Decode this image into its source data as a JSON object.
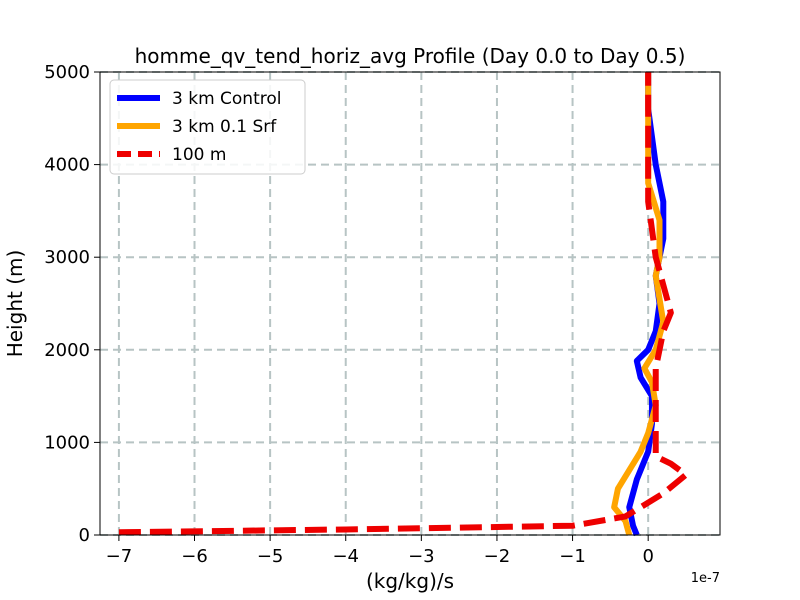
{
  "chart_data": {
    "type": "line",
    "title": "homme_qv_tend_horiz_avg Profile (Day 0.0 to Day 0.5)",
    "xlabel": "(kg/kg)/s",
    "ylabel": "Height (m)",
    "x_offset_label": "1e-7",
    "x_scale": 1e-07,
    "xlim": [
      -7.25,
      0.95
    ],
    "ylim": [
      0,
      5000
    ],
    "xticks": [
      -7,
      -6,
      -5,
      -4,
      -3,
      -2,
      -1,
      0
    ],
    "xtick_labels": [
      "−7",
      "−6",
      "−5",
      "−4",
      "−3",
      "−2",
      "−1",
      "0"
    ],
    "yticks": [
      0,
      1000,
      2000,
      3000,
      4000,
      5000
    ],
    "ytick_labels": [
      "0",
      "1000",
      "2000",
      "3000",
      "4000",
      "5000"
    ],
    "grid": true,
    "legend_position": "upper-left",
    "series": [
      {
        "name": "3 km Control",
        "color": "#0000ff",
        "style": "solid",
        "x": [
          -0.15,
          -0.2,
          -0.25,
          -0.15,
          0.0,
          0.05,
          0.05,
          -0.1,
          -0.15,
          0.0,
          0.1,
          0.15,
          0.1,
          0.15,
          0.2,
          0.2,
          0.15,
          0.1,
          0.05,
          0.0,
          0.0
        ],
        "y": [
          0,
          100,
          300,
          600,
          900,
          1200,
          1500,
          1700,
          1880,
          2000,
          2200,
          2500,
          2800,
          3000,
          3200,
          3600,
          3800,
          4000,
          4300,
          4600,
          5000
        ]
      },
      {
        "name": "3 km 0.1 Srf",
        "color": "#ffa500",
        "style": "solid",
        "x": [
          -0.25,
          -0.3,
          -0.45,
          -0.4,
          -0.25,
          -0.1,
          0.0,
          0.1,
          0.05,
          -0.05,
          0.1,
          0.2,
          0.1,
          0.15,
          0.15,
          0.0,
          0.0,
          0.0,
          0.0
        ],
        "y": [
          0,
          150,
          300,
          500,
          700,
          900,
          1100,
          1400,
          1650,
          1800,
          2000,
          2300,
          2800,
          3000,
          3400,
          3800,
          4000,
          4500,
          5000
        ]
      },
      {
        "name": "100 m",
        "color": "#ee0000",
        "style": "dashed",
        "x": [
          -7.0,
          -4.0,
          -1.0,
          -0.3,
          -0.1,
          0.2,
          0.5,
          0.3,
          0.1,
          0.1,
          0.1,
          0.2,
          0.3,
          0.2,
          0.1,
          0.05,
          0.0,
          0.0,
          0.0,
          0.0
        ],
        "y": [
          30,
          60,
          100,
          200,
          300,
          450,
          650,
          770,
          850,
          1200,
          1800,
          2200,
          2400,
          2700,
          3000,
          3300,
          3600,
          4000,
          4500,
          5000
        ]
      }
    ]
  }
}
